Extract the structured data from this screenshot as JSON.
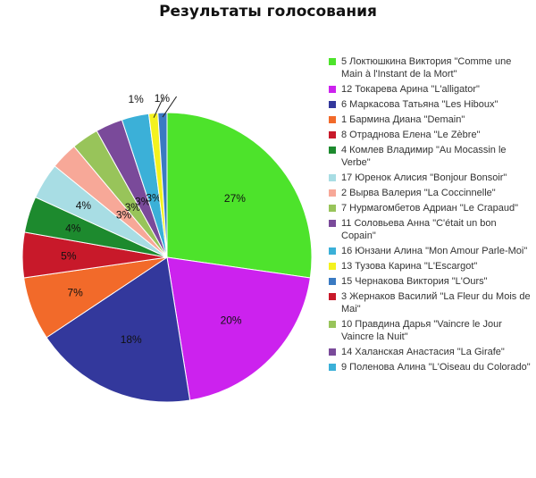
{
  "title": "Результаты голосования",
  "chart_data": {
    "type": "pie",
    "title": "Результаты голосования",
    "legend_position": "right",
    "slices": [
      {
        "label": "5 Локтюшкина Виктория \"Comme une Main à l'Instant de la Mort\"",
        "value": 27,
        "value_label": "27%",
        "color": "#4de32b"
      },
      {
        "label": "12 Токарева Арина \"L'alligator\"",
        "value": 20,
        "value_label": "20%",
        "color": "#cc22ee"
      },
      {
        "label": "6 Маркасова Татьяна \"Les Hiboux\"",
        "value": 18,
        "value_label": "18%",
        "color": "#33389c"
      },
      {
        "label": "1 Бармина Диана \"Demain\"",
        "value": 7,
        "value_label": "7%",
        "color": "#f26a2a"
      },
      {
        "label": "8 Отраднова Елена \"Le Zèbre\"",
        "value": 5,
        "value_label": "5%",
        "color": "#c8192a"
      },
      {
        "label": "4 Комлев Владимир \"Au Mocassin le Verbe\"",
        "value": 4,
        "value_label": "4%",
        "color": "#1d8a2e"
      },
      {
        "label": "17 Юренок Алисия \"Bonjour Bonsoir\"",
        "value": 4,
        "value_label": "4%",
        "color": "#a8dde4"
      },
      {
        "label": "2 Вырва Валерия \"La Coccinnelle\"",
        "value": 3,
        "value_label": "3%",
        "color": "#f7a898"
      },
      {
        "label": "7 Нурмагомбетов Адриан \"Le Crapaud\"",
        "value": 3,
        "value_label": "3%",
        "color": "#98c45a"
      },
      {
        "label": "11 Соловьева Анна \"C'était un bon Copain\"",
        "value": 3,
        "value_label": "3%",
        "color": "#7a4a9a"
      },
      {
        "label": "16 Юнзани Алина \"Mon Amour Parle-Moi\"",
        "value": 3,
        "value_label": "3%",
        "color": "#3bb0d8"
      },
      {
        "label": "13 Тузова Карина \"L'Escargot\"",
        "value": 1,
        "value_label": "1%",
        "color": "#f4f21e"
      },
      {
        "label": "15 Чернакова Виктория \"L'Ours\"",
        "value": 1,
        "value_label": "1%",
        "color": "#3a7ac2"
      },
      {
        "label": "3 Жернаков Василий \"La Fleur du Mois de Mai\"",
        "value": 0,
        "value_label": "",
        "color": "#c8192a"
      },
      {
        "label": "10 Правдина Дарья \"Vaincre le Jour Vaincre la Nuit\"",
        "value": 0,
        "value_label": "",
        "color": "#98c45a"
      },
      {
        "label": "14 Халанская Анастасия \"La Girafe\"",
        "value": 0,
        "value_label": "",
        "color": "#7a4a9a"
      },
      {
        "label": "9 Поленова Алина \"L'Oiseau du Colorado\"",
        "value": 0,
        "value_label": "",
        "color": "#3bb0d8"
      }
    ]
  }
}
